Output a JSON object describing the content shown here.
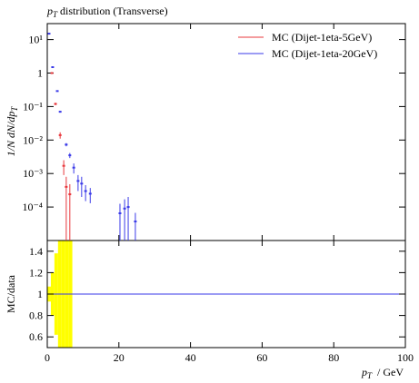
{
  "chart_data": {
    "type": "scatter",
    "title": {
      "symbol": "p",
      "subscript": "T",
      "text": "distribution (Transverse)"
    },
    "ylabel": {
      "text": "1/N dN/dp",
      "subscript": "T"
    },
    "xlabel": {
      "symbol": "p",
      "subscript": "T",
      "text": "/ GeV"
    },
    "xlim": [
      0,
      100
    ],
    "xticks": [
      0,
      20,
      40,
      60,
      80,
      100
    ],
    "log_y": true,
    "ylim": [
      1e-05,
      30
    ],
    "yticks": [
      {
        "value": 10,
        "label": "10¹"
      },
      1,
      {
        "value": 0.1,
        "label": "10⁻¹"
      },
      {
        "value": 0.01,
        "label": "10⁻²"
      },
      {
        "value": 0.001,
        "label": "10⁻³"
      },
      {
        "value": 0.0001,
        "label": "10⁻⁴"
      }
    ],
    "legend": "upper right",
    "series": [
      {
        "name": "MC (Dijet-1eta-5GeV)",
        "color": "#e8383d",
        "x": [
          1.3,
          2.3,
          3.6,
          4.6,
          5.3,
          6.3
        ],
        "values": [
          1,
          0.12,
          0.014,
          0.0017,
          0.0004,
          0.00024
        ],
        "errors": [
          0.03,
          0.01,
          0.003,
          0.0008,
          0.0004,
          0.00024
        ]
      },
      {
        "name": "MC (Dijet-1eta-20GeV)",
        "color": "#3a3ae8",
        "x": [
          0.5,
          1.5,
          2.8,
          3.6,
          5.3,
          6.3,
          7.4,
          8.6,
          9.6,
          10.7,
          12,
          20.3,
          21.6,
          22.6,
          24.6
        ],
        "values": [
          15,
          1.5,
          0.29,
          0.07,
          0.0073,
          0.0035,
          0.0015,
          0.0006,
          0.0005,
          0.0003,
          0.00025,
          6.5e-05,
          9e-05,
          0.0001,
          3.7e-05
        ],
        "errors": [
          0.3,
          0.05,
          0.01,
          0.004,
          0.0008,
          0.0006,
          0.0005,
          0.0003,
          0.0003,
          0.00015,
          0.00012,
          6e-05,
          8e-05,
          0.0001,
          3e-05
        ]
      }
    ],
    "ratio": {
      "ylabel": "MC/data",
      "ylim": [
        0.5,
        1.5
      ],
      "yticks": [
        0.6,
        0.8,
        1,
        1.2,
        1.4
      ],
      "line_value": 1,
      "band_color": "#ffff00",
      "band_bins": [
        0,
        1,
        2,
        3,
        4,
        5,
        6,
        7
      ],
      "band_errors": [
        0.07,
        0.2,
        0.38,
        1,
        1,
        1,
        1
      ]
    }
  }
}
